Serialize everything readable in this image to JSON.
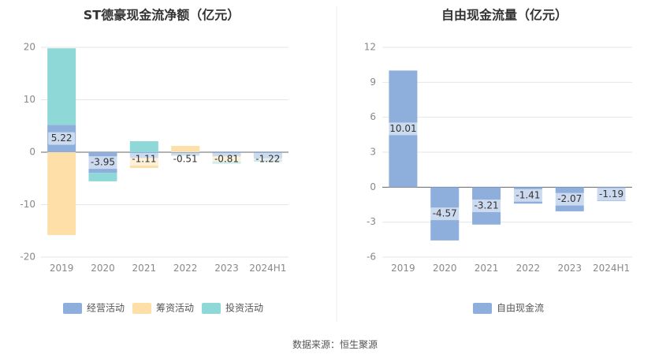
{
  "chart_data": [
    {
      "type": "bar",
      "stacked": true,
      "title": "ST德豪现金流净额（亿元）",
      "categories": [
        "2019",
        "2020",
        "2021",
        "2022",
        "2023",
        "2024H1"
      ],
      "ylim": [
        -20,
        20
      ],
      "yticks": [
        20,
        10,
        0,
        -10,
        -20
      ],
      "grid": true,
      "legend_position": "bottom",
      "series": [
        {
          "name": "经营活动",
          "color": "#8eaedb",
          "values": [
            5.22,
            -3.95,
            -1.11,
            -0.51,
            -0.81,
            -1.22
          ],
          "labels": [
            "5.22",
            "-3.95",
            "-1.11",
            "-0.51",
            "-0.81",
            "-1.22"
          ]
        },
        {
          "name": "筹资活动",
          "color": "#fedfa8",
          "values": [
            -15.8,
            0,
            -1.9,
            1.2,
            -1.0,
            -0.2
          ]
        },
        {
          "name": "投资活动",
          "color": "#8ed8d8",
          "values": [
            14.6,
            -1.6,
            2.1,
            -0.2,
            -0.4,
            -0.4
          ]
        }
      ]
    },
    {
      "type": "bar",
      "title": "自由现金流量（亿元）",
      "categories": [
        "2019",
        "2020",
        "2021",
        "2022",
        "2023",
        "2024H1"
      ],
      "ylim": [
        -6,
        12
      ],
      "yticks": [
        12,
        9,
        6,
        3,
        0,
        -3,
        -6
      ],
      "grid": true,
      "legend_position": "bottom",
      "series": [
        {
          "name": "自由现金流",
          "color": "#8eaedb",
          "values": [
            10.01,
            -4.57,
            -3.21,
            -1.41,
            -2.07,
            -1.19
          ],
          "labels": [
            "10.01",
            "-4.57",
            "-3.21",
            "-1.41",
            "-2.07",
            "-1.19"
          ]
        }
      ]
    }
  ],
  "source": "数据来源：恒生聚源"
}
